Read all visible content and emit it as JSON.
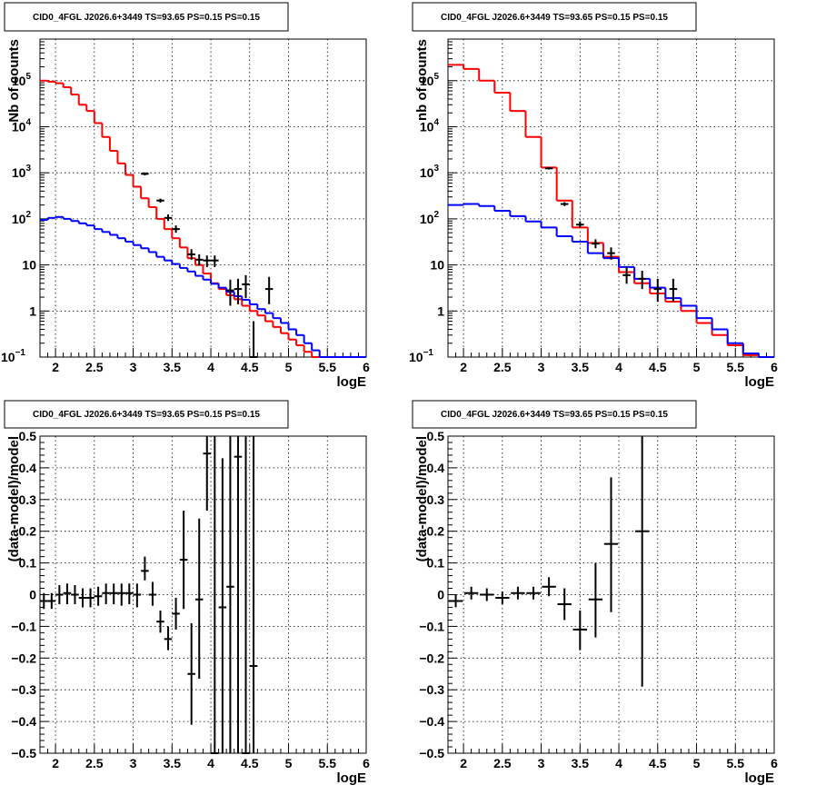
{
  "chart_data": [
    {
      "id": "tl",
      "type": "line",
      "title": "CID0_4FGL J2026.6+3449 TS=93.65 PS=0.15 PS=0.15",
      "xlabel": "logE",
      "ylabel": "Nb of counts",
      "log_y": true,
      "grid": true,
      "xlim": [
        1.8,
        6.0
      ],
      "ylim": [
        0.1,
        800000
      ],
      "x_ticks": [
        2,
        2.5,
        3,
        3.5,
        4,
        4.5,
        5,
        5.5,
        6
      ],
      "x_tick_labels": [
        "2",
        "2.5",
        "3",
        "3.5",
        "4",
        "4.5",
        "5",
        "5.5",
        "6"
      ],
      "y_ticks": [
        0.1,
        1,
        10,
        100,
        1000,
        10000,
        100000
      ],
      "y_tick_labels": [
        {
          "base": "10",
          "exp": "−1"
        },
        {
          "base": "1",
          "exp": ""
        },
        {
          "base": "10",
          "exp": ""
        },
        {
          "base": "10",
          "exp": "2"
        },
        {
          "base": "10",
          "exp": "3"
        },
        {
          "base": "10",
          "exp": "4"
        },
        {
          "base": "10",
          "exp": "5"
        }
      ],
      "series": [
        {
          "style": "step",
          "color": "#ff0000",
          "edges": [
            1.8,
            1.9,
            2.0,
            2.1,
            2.2,
            2.3,
            2.4,
            2.5,
            2.6,
            2.7,
            2.8,
            2.9,
            3.0,
            3.1,
            3.2,
            3.3,
            3.4,
            3.5,
            3.6,
            3.7,
            3.8,
            3.9,
            4.0,
            4.1,
            4.2,
            4.3,
            4.4,
            4.5,
            4.6,
            4.7,
            4.8,
            4.9,
            5.0,
            5.1,
            5.2,
            5.3,
            5.4,
            5.5,
            5.6,
            5.7,
            5.8,
            5.9,
            6.0
          ],
          "values": [
            100000,
            95000,
            88000,
            72000,
            50000,
            30000,
            22000,
            12000,
            6000,
            3000,
            1600,
            900,
            500,
            280,
            180,
            100,
            60,
            38,
            24,
            14,
            10,
            6.5,
            4,
            3,
            2.2,
            1.8,
            1.3,
            1.0,
            0.8,
            0.6,
            0.45,
            0.33,
            0.24,
            0.18,
            0.13,
            0.1,
            0.1,
            0.1,
            0.1,
            0.1,
            0.1,
            0.1
          ]
        },
        {
          "style": "step",
          "color": "#0000ff",
          "edges": [
            1.8,
            1.9,
            2.0,
            2.1,
            2.2,
            2.3,
            2.4,
            2.5,
            2.6,
            2.7,
            2.8,
            2.9,
            3.0,
            3.1,
            3.2,
            3.3,
            3.4,
            3.5,
            3.6,
            3.7,
            3.8,
            3.9,
            4.0,
            4.1,
            4.2,
            4.3,
            4.4,
            4.5,
            4.6,
            4.7,
            4.8,
            4.9,
            5.0,
            5.1,
            5.2,
            5.3,
            5.4,
            5.5,
            5.6,
            5.7,
            5.8,
            5.9,
            6.0
          ],
          "values": [
            95,
            105,
            110,
            100,
            90,
            80,
            72,
            60,
            52,
            45,
            38,
            32,
            27,
            23,
            19,
            15,
            12.5,
            10.5,
            8.6,
            7.2,
            5.8,
            4.8,
            3.9,
            3.2,
            2.6,
            2.1,
            1.75,
            1.4,
            1.1,
            0.9,
            0.7,
            0.55,
            0.4,
            0.3,
            0.2,
            0.14,
            0.1,
            0.1,
            0.1,
            0.1,
            0.1,
            0.1
          ]
        },
        {
          "style": "points",
          "color": "#000000",
          "x": [
            3.15,
            3.35,
            3.45,
            3.55,
            3.75,
            3.85,
            3.95,
            4.05,
            4.25,
            4.35,
            4.45,
            4.55,
            4.75
          ],
          "y": [
            950,
            250,
            105,
            60,
            17,
            13,
            12.5,
            12.5,
            2.8,
            3,
            3.8,
            0.1,
            3
          ],
          "yerr_low": [
            880,
            225,
            90,
            50,
            13,
            9.7,
            9,
            9,
            1.3,
            1.4,
            1.9,
            0,
            1.4
          ],
          "yerr_high": [
            1020,
            275,
            125,
            72,
            22,
            17,
            16,
            16,
            4.8,
            5,
            6,
            0.6,
            5.5
          ]
        }
      ]
    },
    {
      "id": "tr",
      "type": "line",
      "title": "CID0_4FGL J2026.6+3449 TS=93.65 PS=0.15 PS=0.15",
      "xlabel": "logE",
      "ylabel": "nb of counts",
      "log_y": true,
      "grid": true,
      "xlim": [
        1.8,
        6.0
      ],
      "ylim": [
        0.1,
        800000
      ],
      "x_ticks": [
        2,
        2.5,
        3,
        3.5,
        4,
        4.5,
        5,
        5.5,
        6
      ],
      "x_tick_labels": [
        "2",
        "2.5",
        "3",
        "3.5",
        "4",
        "4.5",
        "5",
        "5.5",
        "6"
      ],
      "y_ticks": [
        0.1,
        1,
        10,
        100,
        1000,
        10000,
        100000
      ],
      "y_tick_labels": [
        {
          "base": "10",
          "exp": "−1"
        },
        {
          "base": "1",
          "exp": ""
        },
        {
          "base": "10",
          "exp": ""
        },
        {
          "base": "10",
          "exp": "2"
        },
        {
          "base": "10",
          "exp": "3"
        },
        {
          "base": "10",
          "exp": "4"
        },
        {
          "base": "10",
          "exp": "5"
        }
      ],
      "series": [
        {
          "style": "step",
          "color": "#ff0000",
          "edges": [
            1.8,
            2.0,
            2.2,
            2.4,
            2.6,
            2.8,
            3.0,
            3.2,
            3.4,
            3.6,
            3.8,
            4.0,
            4.2,
            4.4,
            4.6,
            4.8,
            5.0,
            5.2,
            5.4,
            5.6,
            5.8,
            6.0
          ],
          "values": [
            220000,
            180000,
            100000,
            55000,
            22000,
            6000,
            1300,
            250,
            65,
            30,
            15,
            7,
            4,
            2.4,
            1.6,
            1.0,
            0.55,
            0.3,
            0.18,
            0.11,
            0.1
          ]
        },
        {
          "style": "step",
          "color": "#0000ff",
          "edges": [
            1.8,
            2.0,
            2.2,
            2.4,
            2.6,
            2.8,
            3.0,
            3.2,
            3.4,
            3.6,
            3.8,
            4.0,
            4.2,
            4.4,
            4.6,
            4.8,
            5.0,
            5.2,
            5.4,
            5.6,
            5.8,
            6.0
          ],
          "values": [
            200,
            210,
            190,
            150,
            115,
            88,
            65,
            42,
            32,
            18,
            14,
            9,
            5,
            3.2,
            1.9,
            1.3,
            0.7,
            0.4,
            0.2,
            0.12,
            0.1
          ]
        },
        {
          "style": "points",
          "color": "#000000",
          "x": [
            3.1,
            3.3,
            3.5,
            3.7,
            3.9,
            4.1,
            4.3,
            4.5,
            4.7
          ],
          "y": [
            1250,
            210,
            75,
            29,
            18,
            6,
            5,
            3,
            3
          ],
          "yerr_low": [
            1180,
            190,
            65,
            23,
            13,
            3.9,
            3,
            1.6,
            1.6
          ],
          "yerr_high": [
            1320,
            230,
            88,
            36,
            24,
            9,
            7.5,
            5,
            5
          ]
        }
      ]
    },
    {
      "id": "bl",
      "type": "scatter",
      "title": "CID0_4FGL J2026.6+3449 TS=93.65 PS=0.15 PS=0.15",
      "xlabel": "logE",
      "ylabel": "(data-model)/model",
      "log_y": false,
      "grid": true,
      "xlim": [
        1.8,
        6.0
      ],
      "ylim": [
        -0.5,
        0.5
      ],
      "x_ticks": [
        2,
        2.5,
        3,
        3.5,
        4,
        4.5,
        5,
        5.5,
        6
      ],
      "x_tick_labels": [
        "2",
        "2.5",
        "3",
        "3.5",
        "4",
        "4.5",
        "5",
        "5.5",
        "6"
      ],
      "y_ticks": [
        -0.5,
        -0.4,
        -0.3,
        -0.2,
        -0.1,
        0,
        0.1,
        0.2,
        0.3,
        0.4,
        0.5
      ],
      "y_tick_labels": [
        {
          "base": "−0.5",
          "exp": ""
        },
        {
          "base": "−0.4",
          "exp": ""
        },
        {
          "base": "−0.3",
          "exp": ""
        },
        {
          "base": "−0.2",
          "exp": ""
        },
        {
          "base": "−0.1",
          "exp": ""
        },
        {
          "base": "0",
          "exp": ""
        },
        {
          "base": "0.1",
          "exp": ""
        },
        {
          "base": "0.2",
          "exp": ""
        },
        {
          "base": "0.3",
          "exp": ""
        },
        {
          "base": "0.4",
          "exp": ""
        },
        {
          "base": "0.5",
          "exp": ""
        }
      ],
      "series": [
        {
          "style": "points",
          "color": "#000000",
          "x_halfwidth": 0.05,
          "x": [
            1.85,
            1.95,
            2.05,
            2.15,
            2.25,
            2.35,
            2.45,
            2.55,
            2.65,
            2.75,
            2.85,
            2.95,
            3.05,
            3.15,
            3.25,
            3.35,
            3.45,
            3.55,
            3.65,
            3.75,
            3.85,
            3.95,
            4.05,
            4.15,
            4.25,
            4.35,
            4.45,
            4.55
          ],
          "y": [
            -0.02,
            -0.02,
            0.0,
            0.005,
            0.0,
            -0.01,
            -0.01,
            -0.005,
            0.005,
            0.005,
            0.005,
            0.005,
            0.0,
            0.075,
            0.0,
            -0.085,
            -0.14,
            -0.06,
            0.11,
            -0.25,
            -0.015,
            0.445,
            -0.5,
            -0.04,
            0.025,
            0.435,
            -0.5,
            -0.225
          ],
          "yerr_low": [
            -0.045,
            -0.045,
            -0.03,
            -0.03,
            -0.03,
            -0.04,
            -0.04,
            -0.035,
            -0.03,
            -0.03,
            -0.035,
            -0.03,
            -0.04,
            0.045,
            -0.035,
            -0.12,
            -0.175,
            -0.11,
            -0.045,
            -0.41,
            -0.265,
            0.265,
            -0.5,
            -0.5,
            -0.5,
            -0.5,
            -0.5,
            -0.5
          ],
          "yerr_high": [
            0.005,
            0.005,
            0.03,
            0.035,
            0.03,
            0.02,
            0.02,
            0.025,
            0.035,
            0.035,
            0.035,
            0.035,
            0.035,
            0.12,
            0.04,
            -0.05,
            -0.1,
            -0.01,
            0.265,
            -0.09,
            0.24,
            0.5,
            0.5,
            0.43,
            0.5,
            0.5,
            0.5,
            0.5
          ]
        }
      ]
    },
    {
      "id": "br",
      "type": "scatter",
      "title": "CID0_4FGL J2026.6+3449 TS=93.65 PS=0.15 PS=0.15",
      "xlabel": "logE",
      "ylabel": "(data-model)/model",
      "log_y": false,
      "grid": true,
      "xlim": [
        1.8,
        6.0
      ],
      "ylim": [
        -0.5,
        0.5
      ],
      "x_ticks": [
        2,
        2.5,
        3,
        3.5,
        4,
        4.5,
        5,
        5.5,
        6
      ],
      "x_tick_labels": [
        "2",
        "2.5",
        "3",
        "3.5",
        "4",
        "4.5",
        "5",
        "5.5",
        "6"
      ],
      "y_ticks": [
        -0.5,
        -0.4,
        -0.3,
        -0.2,
        -0.1,
        0,
        0.1,
        0.2,
        0.3,
        0.4,
        0.5
      ],
      "y_tick_labels": [
        {
          "base": "−0.5",
          "exp": ""
        },
        {
          "base": "−0.4",
          "exp": ""
        },
        {
          "base": "−0.3",
          "exp": ""
        },
        {
          "base": "−0.2",
          "exp": ""
        },
        {
          "base": "−0.1",
          "exp": ""
        },
        {
          "base": "0",
          "exp": ""
        },
        {
          "base": "0.1",
          "exp": ""
        },
        {
          "base": "0.2",
          "exp": ""
        },
        {
          "base": "0.3",
          "exp": ""
        },
        {
          "base": "0.4",
          "exp": ""
        },
        {
          "base": "0.5",
          "exp": ""
        }
      ],
      "series": [
        {
          "style": "points",
          "color": "#000000",
          "x_halfwidth": 0.09,
          "x": [
            1.9,
            2.1,
            2.3,
            2.5,
            2.7,
            2.9,
            3.1,
            3.3,
            3.5,
            3.7,
            3.9,
            4.3
          ],
          "y": [
            -0.02,
            0.005,
            0.0,
            -0.01,
            0.005,
            0.005,
            0.025,
            -0.03,
            -0.11,
            -0.015,
            0.16,
            0.2
          ],
          "yerr_low": [
            -0.04,
            -0.015,
            -0.02,
            -0.03,
            -0.015,
            -0.015,
            -0.005,
            -0.08,
            -0.175,
            -0.135,
            -0.055,
            -0.29
          ],
          "yerr_high": [
            0.0,
            0.025,
            0.02,
            0.01,
            0.025,
            0.025,
            0.055,
            0.02,
            -0.05,
            0.1,
            0.37,
            0.5
          ]
        }
      ]
    }
  ]
}
